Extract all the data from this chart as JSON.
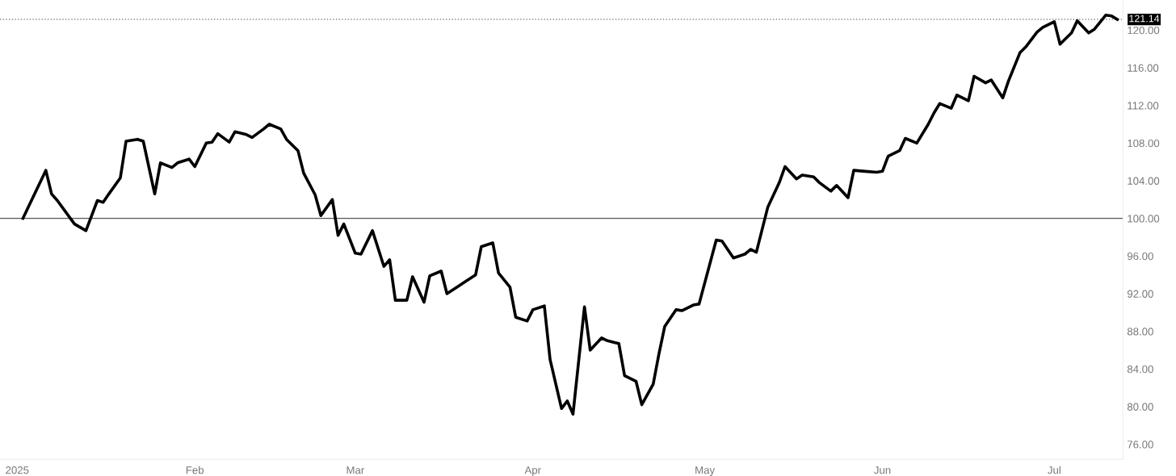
{
  "chart_data": {
    "type": "line",
    "x": [
      "2025-01-02",
      "2025-01-06",
      "2025-01-07",
      "2025-01-08",
      "2025-01-11",
      "2025-01-13",
      "2025-01-15",
      "2025-01-16",
      "2025-01-17",
      "2025-01-19",
      "2025-01-20",
      "2025-01-22",
      "2025-01-23",
      "2025-01-25",
      "2025-01-26",
      "2025-01-28",
      "2025-01-29",
      "2025-01-31",
      "2025-02-01",
      "2025-02-03",
      "2025-02-04",
      "2025-02-05",
      "2025-02-07",
      "2025-02-08",
      "2025-02-10",
      "2025-02-11",
      "2025-02-13",
      "2025-02-14",
      "2025-02-16",
      "2025-02-17",
      "2025-02-19",
      "2025-02-20",
      "2025-02-22",
      "2025-02-23",
      "2025-02-25",
      "2025-02-26",
      "2025-02-27",
      "2025-03-01",
      "2025-03-02",
      "2025-03-04",
      "2025-03-06",
      "2025-03-07",
      "2025-03-08",
      "2025-03-10",
      "2025-03-11",
      "2025-03-13",
      "2025-03-14",
      "2025-03-16",
      "2025-03-17",
      "2025-03-19",
      "2025-03-20",
      "2025-03-22",
      "2025-03-23",
      "2025-03-25",
      "2025-03-26",
      "2025-03-28",
      "2025-03-29",
      "2025-03-31",
      "2025-04-01",
      "2025-04-03",
      "2025-04-04",
      "2025-04-06",
      "2025-04-07",
      "2025-04-08",
      "2025-04-10",
      "2025-04-11",
      "2025-04-13",
      "2025-04-14",
      "2025-04-16",
      "2025-04-17",
      "2025-04-19",
      "2025-04-20",
      "2025-04-22",
      "2025-04-23",
      "2025-04-24",
      "2025-04-26",
      "2025-04-27",
      "2025-04-29",
      "2025-04-30",
      "2025-05-03",
      "2025-05-04",
      "2025-05-06",
      "2025-05-08",
      "2025-05-09",
      "2025-05-10",
      "2025-05-12",
      "2025-05-14",
      "2025-05-15",
      "2025-05-17",
      "2025-05-18",
      "2025-05-20",
      "2025-05-21",
      "2025-05-23",
      "2025-05-24",
      "2025-05-26",
      "2025-05-27",
      "2025-05-29",
      "2025-05-31",
      "2025-06-01",
      "2025-06-02",
      "2025-06-04",
      "2025-06-05",
      "2025-06-07",
      "2025-06-09",
      "2025-06-10",
      "2025-06-11",
      "2025-06-13",
      "2025-06-14",
      "2025-06-16",
      "2025-06-17",
      "2025-06-19",
      "2025-06-20",
      "2025-06-22",
      "2025-06-23",
      "2025-06-25",
      "2025-06-26",
      "2025-06-28",
      "2025-06-29",
      "2025-07-01",
      "2025-07-02",
      "2025-07-04",
      "2025-07-05",
      "2025-07-07",
      "2025-07-08",
      "2025-07-10",
      "2025-07-11",
      "2025-07-12"
    ],
    "series": [
      {
        "color": "#000000",
        "values": [
          100.0,
          105.1,
          102.6,
          101.9,
          99.4,
          98.7,
          101.9,
          101.7,
          102.6,
          104.3,
          108.2,
          108.4,
          108.2,
          102.6,
          105.9,
          105.4,
          105.9,
          106.3,
          105.5,
          108.0,
          108.1,
          109.0,
          108.1,
          109.2,
          108.9,
          108.6,
          109.5,
          110.0,
          109.5,
          108.4,
          107.2,
          104.8,
          102.5,
          100.3,
          102.0,
          98.2,
          99.4,
          96.3,
          96.2,
          98.7,
          94.9,
          95.6,
          91.3,
          91.3,
          93.8,
          91.1,
          93.9,
          94.4,
          92.0,
          92.8,
          93.2,
          94.0,
          97.0,
          97.4,
          94.2,
          92.7,
          89.5,
          89.1,
          90.3,
          90.7,
          85.0,
          79.8,
          80.6,
          79.2,
          90.6,
          86.0,
          87.3,
          87.0,
          86.7,
          83.3,
          82.7,
          80.2,
          82.4,
          85.6,
          88.5,
          90.3,
          90.2,
          90.8,
          90.9,
          97.7,
          97.6,
          95.8,
          96.2,
          96.7,
          96.4,
          101.2,
          103.8,
          105.5,
          104.2,
          104.6,
          104.4,
          103.8,
          102.9,
          103.5,
          102.2,
          105.1,
          105.0,
          104.9,
          105.0,
          106.6,
          107.2,
          108.5,
          108.0,
          110.0,
          111.2,
          112.2,
          111.7,
          113.1,
          112.5,
          115.1,
          114.4,
          114.7,
          112.8,
          114.6,
          117.6,
          118.2,
          119.8,
          120.3,
          120.9,
          118.5,
          119.7,
          121.0,
          119.7,
          120.1,
          121.6,
          121.5,
          121.14
        ]
      }
    ],
    "xlim": [
      "2024-12-29",
      "2025-07-13"
    ],
    "xticks": [
      {
        "value": "2025-01-01",
        "label": "2025"
      },
      {
        "value": "2025-02-01",
        "label": "Feb"
      },
      {
        "value": "2025-03-01",
        "label": "Mar"
      },
      {
        "value": "2025-04-01",
        "label": "Apr"
      },
      {
        "value": "2025-05-01",
        "label": "May"
      },
      {
        "value": "2025-06-01",
        "label": "Jun"
      },
      {
        "value": "2025-07-01",
        "label": "Jul"
      }
    ],
    "ylim": [
      74.4,
      123.2
    ],
    "yticks": [
      {
        "value": 76,
        "label": "76.00"
      },
      {
        "value": 80,
        "label": "80.00"
      },
      {
        "value": 84,
        "label": "84.00"
      },
      {
        "value": 88,
        "label": "88.00"
      },
      {
        "value": 92,
        "label": "92.00"
      },
      {
        "value": 96,
        "label": "96.00"
      },
      {
        "value": 100,
        "label": "100.00"
      },
      {
        "value": 104,
        "label": "104.00"
      },
      {
        "value": 108,
        "label": "108.00"
      },
      {
        "value": 112,
        "label": "112.00"
      },
      {
        "value": 116,
        "label": "116.00"
      },
      {
        "value": 120,
        "label": "120.00"
      }
    ],
    "ref_lines": [
      {
        "axis": "y",
        "value": 100,
        "color": "#555555",
        "line_style": "solid"
      },
      {
        "axis": "y",
        "value": 121.14,
        "label": "121.14",
        "color": "#888888",
        "line_style": "dotted"
      }
    ],
    "grid": false,
    "legend": false,
    "marker": "none",
    "line_style": "solid"
  }
}
